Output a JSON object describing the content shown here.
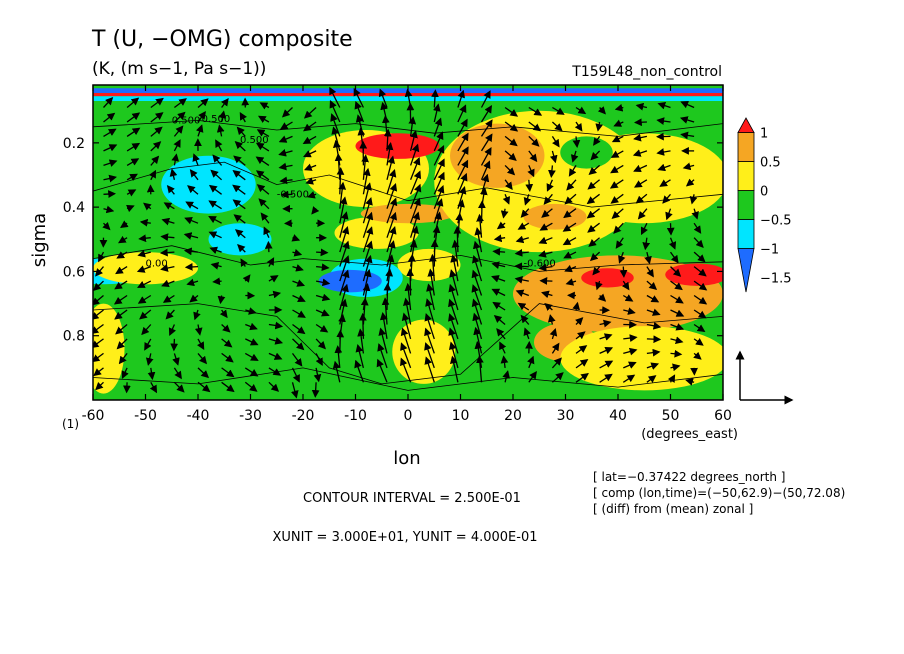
{
  "chart_data": {
    "type": "heatmap",
    "title": "T (U, −OMG) composite",
    "subtitle": "(K, (m s−1, Pa s−1))",
    "run_label": "T159L48_non_control",
    "xlabel": "lon",
    "x_units": "(degrees_east)",
    "ylabel": "sigma",
    "y_axis_extra": "(1)",
    "x_range": [
      -60,
      60
    ],
    "y_range": [
      1.0,
      0.02
    ],
    "x_ticks": [
      -60,
      -50,
      -40,
      -30,
      -20,
      -10,
      0,
      10,
      20,
      30,
      40,
      50,
      60
    ],
    "y_ticks": [
      0.2,
      0.4,
      0.6,
      0.8
    ],
    "colorbar": {
      "labels": [
        "1",
        "0.5",
        "0",
        "−0.5",
        "−1",
        "−1.5"
      ],
      "levels": [
        -1.75,
        -1.5,
        -1.0,
        -0.5,
        0.0,
        0.5,
        1.0,
        1.25
      ],
      "colors": [
        "#1e6cff",
        "#00e5ff",
        "#1ec81e",
        "#ffef1a",
        "#f5a623",
        "#ff1a1a"
      ]
    },
    "contour_labels": [
      "-0.500",
      "0.500",
      "-0.500",
      "0.00",
      "-0.600",
      "0.500"
    ],
    "footer": {
      "contour_interval": "CONTOUR INTERVAL = 2.500E-01",
      "units": "XUNIT = 3.000E+01, YUNIT = 4.000E-01",
      "info": [
        "[ lat=−0.37422 degrees_north ]",
        "[ comp (lon,time)=(−50,62.9)−(50,72.08)",
        "[ (diff) from (mean) zonal ]"
      ]
    },
    "grid": false,
    "legend_placement": "right"
  }
}
